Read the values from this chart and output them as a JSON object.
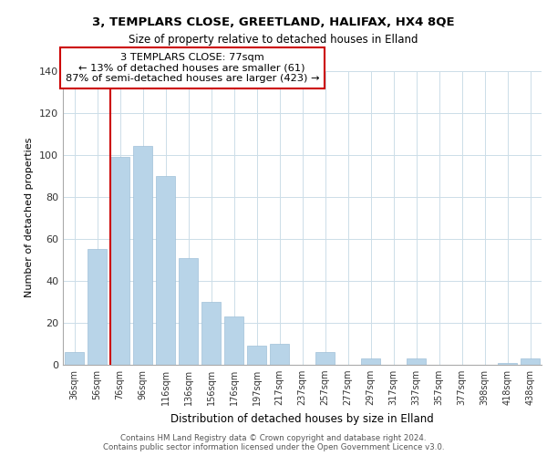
{
  "title1": "3, TEMPLARS CLOSE, GREETLAND, HALIFAX, HX4 8QE",
  "title2": "Size of property relative to detached houses in Elland",
  "xlabel": "Distribution of detached houses by size in Elland",
  "ylabel": "Number of detached properties",
  "bar_color": "#b8d4e8",
  "bar_edge_color": "#a0c0d8",
  "marker_line_color": "#cc0000",
  "categories": [
    "36sqm",
    "56sqm",
    "76sqm",
    "96sqm",
    "116sqm",
    "136sqm",
    "156sqm",
    "176sqm",
    "197sqm",
    "217sqm",
    "237sqm",
    "257sqm",
    "277sqm",
    "297sqm",
    "317sqm",
    "337sqm",
    "357sqm",
    "377sqm",
    "398sqm",
    "418sqm",
    "438sqm"
  ],
  "values": [
    6,
    55,
    99,
    104,
    90,
    51,
    30,
    23,
    9,
    10,
    0,
    6,
    0,
    3,
    0,
    3,
    0,
    0,
    0,
    1,
    3
  ],
  "marker_category_index": 2,
  "annotation_title": "3 TEMPLARS CLOSE: 77sqm",
  "annotation_line1": "← 13% of detached houses are smaller (61)",
  "annotation_line2": "87% of semi-detached houses are larger (423) →",
  "ylim": [
    0,
    140
  ],
  "yticks": [
    0,
    20,
    40,
    60,
    80,
    100,
    120,
    140
  ],
  "footer1": "Contains HM Land Registry data © Crown copyright and database right 2024.",
  "footer2": "Contains public sector information licensed under the Open Government Licence v3.0."
}
